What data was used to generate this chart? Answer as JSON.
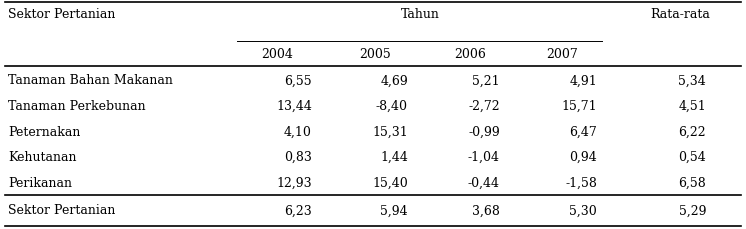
{
  "rows": [
    [
      "Tanaman Bahan Makanan",
      "6,55",
      "4,69",
      "5,21",
      "4,91",
      "5,34"
    ],
    [
      "Tanaman Perkebunan",
      "13,44",
      "-8,40",
      "-2,72",
      "15,71",
      "4,51"
    ],
    [
      "Peternakan",
      "4,10",
      "15,31",
      "-0,99",
      "6,47",
      "6,22"
    ],
    [
      "Kehutanan",
      "0,83",
      "1,44",
      "-1,04",
      "0,94",
      "0,54"
    ],
    [
      "Perikanan",
      "12,93",
      "15,40",
      "-0,44",
      "-1,58",
      "6,58"
    ]
  ],
  "footer_row": [
    "Sektor Pertanian",
    "6,23",
    "5,94",
    "3,68",
    "5,30",
    "5,29"
  ],
  "bg_color": "#ffffff",
  "text_color": "#000000",
  "font_size": 9.0
}
